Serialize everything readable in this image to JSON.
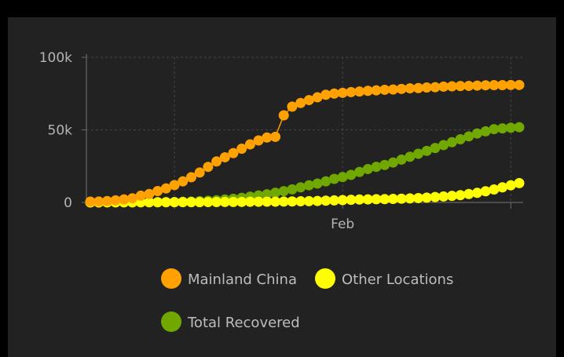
{
  "chart_data": {
    "type": "line",
    "title": "",
    "xlabel": "",
    "ylabel": "",
    "ylim": [
      0,
      100000
    ],
    "yticks": [
      {
        "value": 0,
        "label": "0"
      },
      {
        "value": 50000,
        "label": "50k"
      },
      {
        "value": 100000,
        "label": "100k"
      }
    ],
    "xticks": [
      {
        "index": 10,
        "label": ""
      },
      {
        "index": 30,
        "label": "Feb"
      },
      {
        "index": 50,
        "label": ""
      }
    ],
    "grid": true,
    "legend_position": "bottom",
    "series": [
      {
        "name": "Mainland China",
        "color": "#ffa100",
        "values": [
          548,
          641,
          918,
          1401,
          2067,
          2869,
          4630,
          5824,
          7829,
          9680,
          11944,
          14523,
          17352,
          20582,
          24489,
          28220,
          31100,
          34000,
          37000,
          40000,
          42700,
          44700,
          45200,
          60000,
          66000,
          68500,
          70500,
          72400,
          74200,
          75000,
          75500,
          76000,
          76400,
          76900,
          77200,
          77600,
          77800,
          78200,
          78600,
          78800,
          79200,
          79400,
          79800,
          80000,
          80200,
          80300,
          80500,
          80700,
          80800,
          80800,
          80900,
          80900
        ]
      },
      {
        "name": "Other Locations",
        "color": "#ffff00",
        "values": [
          7,
          14,
          25,
          40,
          57,
          64,
          87,
          105,
          118,
          153,
          173,
          183,
          188,
          212,
          227,
          265,
          317,
          343,
          361,
          457,
          476,
          523,
          538,
          595,
          685,
          780,
          896,
          999,
          1200,
          1400,
          1600,
          1800,
          2000,
          2100,
          2200,
          2300,
          2400,
          2600,
          2800,
          3000,
          3300,
          3700,
          4100,
          4500,
          5000,
          5800,
          6600,
          7700,
          8900,
          10400,
          11800,
          13300
        ]
      },
      {
        "name": "Total Recovered",
        "color": "#70a800",
        "values": [
          28,
          30,
          36,
          39,
          52,
          61,
          107,
          126,
          143,
          222,
          284,
          472,
          623,
          852,
          1124,
          1487,
          1999,
          2500,
          3200,
          4000,
          4800,
          5600,
          6700,
          7800,
          9000,
          10400,
          11800,
          13000,
          14500,
          16200,
          17500,
          19000,
          21000,
          23000,
          24500,
          25800,
          27500,
          29500,
          31500,
          33500,
          35500,
          37500,
          39500,
          41500,
          43500,
          45500,
          47500,
          49000,
          50500,
          51000,
          51500,
          51800
        ]
      }
    ]
  }
}
